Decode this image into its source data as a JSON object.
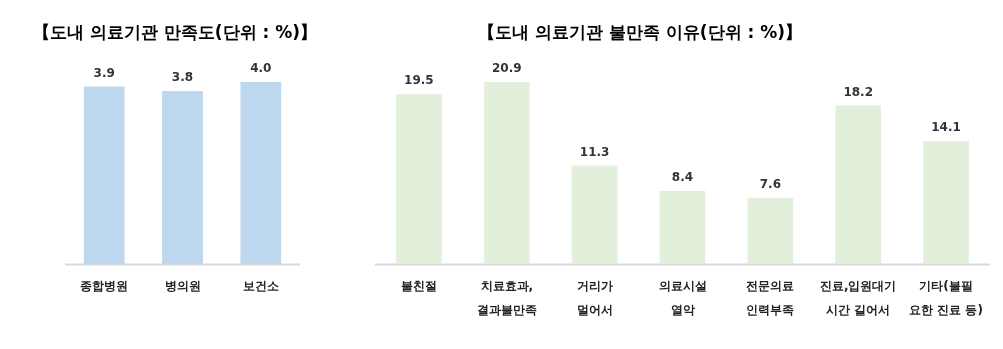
{
  "chart_data": [
    {
      "type": "bar",
      "title": "【도내 의료기관 만족도(단위 : %)】",
      "categories": [
        "종합병원",
        "병의원",
        "보건소"
      ],
      "values": [
        3.9,
        3.8,
        4.0
      ],
      "value_labels": [
        "3.9",
        "3.8",
        "4.0"
      ],
      "color": "#bdd7ee"
    },
    {
      "type": "bar",
      "title": "【도내 의료기관 불만족 이유(단위 : %)】",
      "categories": [
        "불친절",
        "치료효과,\n결과불만족",
        "거리가\n멀어서",
        "의료시설\n열악",
        "전문의료\n인력부족",
        "진료,입원대기\n시간 길어서",
        "기타(불필\n요한 진료 등)"
      ],
      "values": [
        19.5,
        20.9,
        11.3,
        8.4,
        7.6,
        18.2,
        14.1
      ],
      "color": "#e2efda",
      "data_labels": true
    }
  ]
}
